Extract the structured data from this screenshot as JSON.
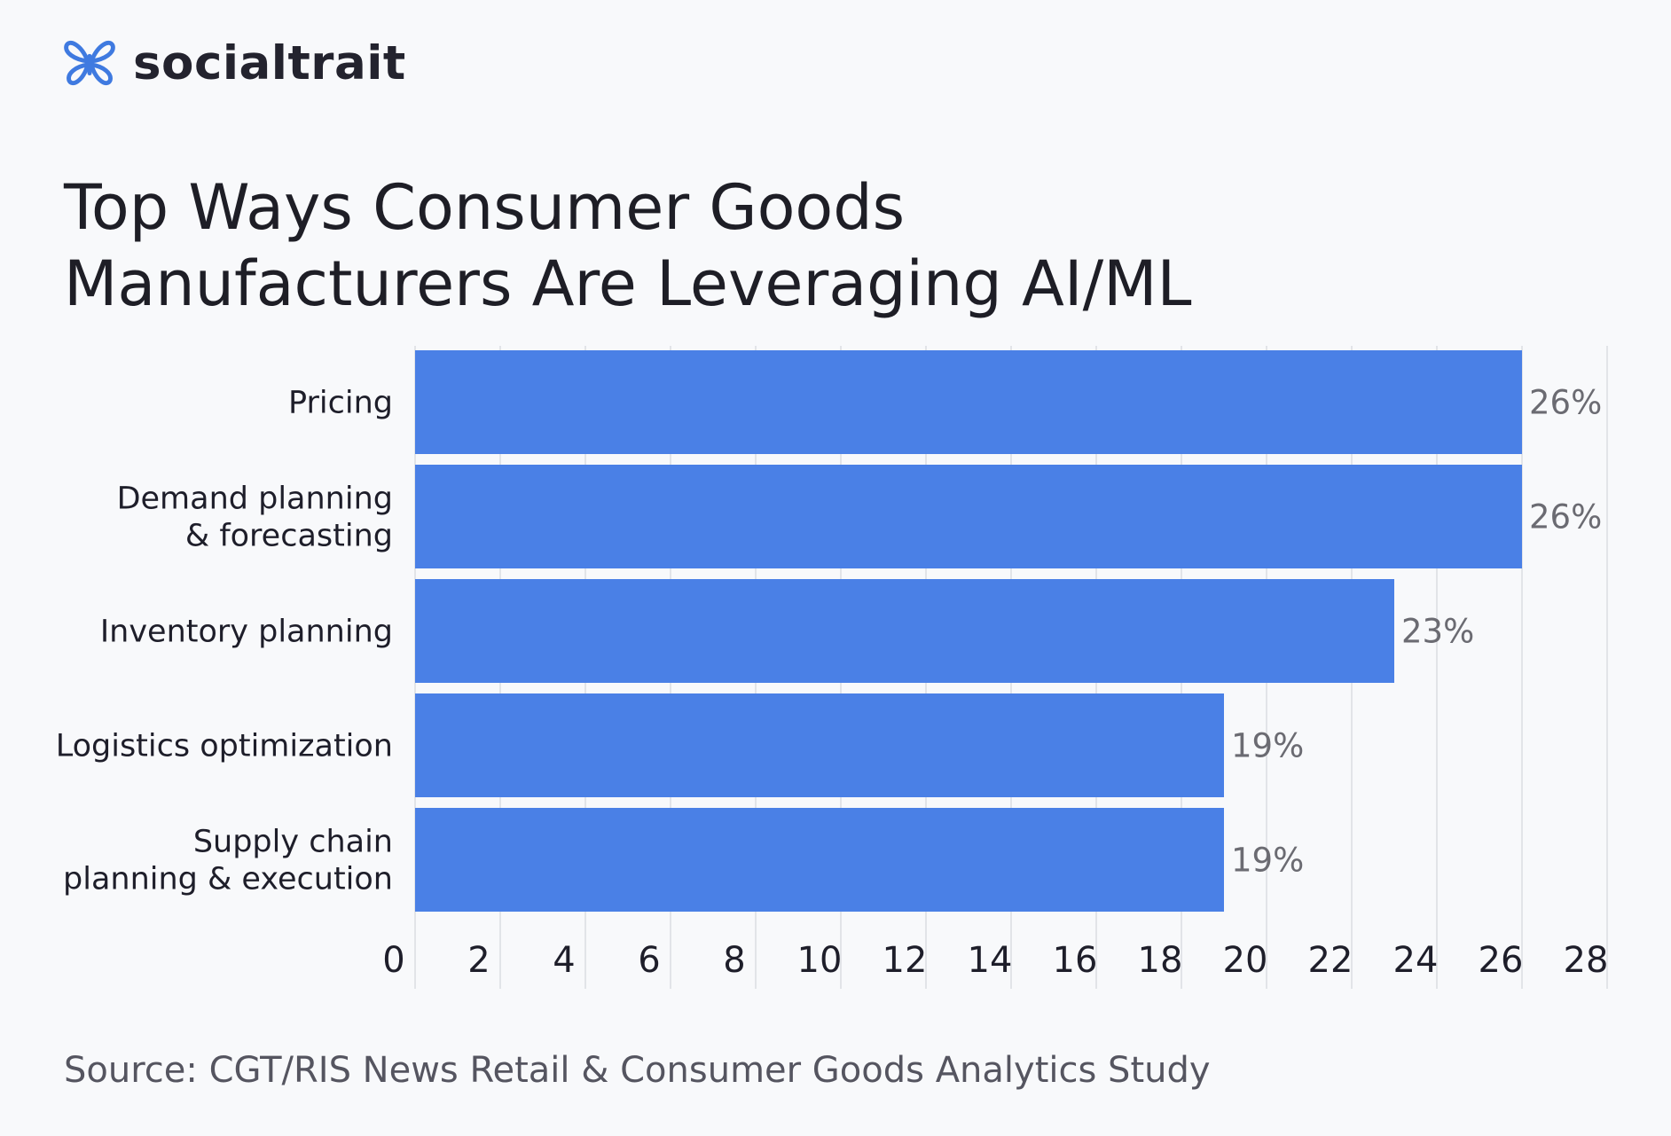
{
  "brand": {
    "name": "socialtrait",
    "logo_icon": "butterfly-logo-icon",
    "logo_color": "#3f7ae0"
  },
  "title_lines": [
    "Top Ways Consumer Goods",
    "Manufacturers Are Leveraging AI/ML"
  ],
  "source": "Source: CGT/RIS News Retail & Consumer Goods Analytics Study",
  "colors": {
    "bar": "#4a80e6",
    "grid": "#e2e4e8",
    "label": "#1e1e2a",
    "value": "#6b6b72",
    "background": "#f8f9fb"
  },
  "chart_data": {
    "type": "bar",
    "orientation": "horizontal",
    "categories": [
      [
        "Pricing"
      ],
      [
        "Demand planning",
        "& forecasting"
      ],
      [
        "Inventory planning"
      ],
      [
        "Logistics optimization"
      ],
      [
        "Supply chain",
        "planning & execution"
      ]
    ],
    "values": [
      26,
      26,
      23,
      19,
      19
    ],
    "value_labels": [
      "26%",
      "26%",
      "23%",
      "19%",
      "19%"
    ],
    "xlim": [
      0,
      28
    ],
    "xticks": [
      "0",
      "2",
      "4",
      "6",
      "8",
      "10",
      "12",
      "14",
      "16",
      "18",
      "20",
      "22",
      "24",
      "26",
      "28"
    ],
    "grid": true,
    "xlabel": "",
    "ylabel": ""
  }
}
